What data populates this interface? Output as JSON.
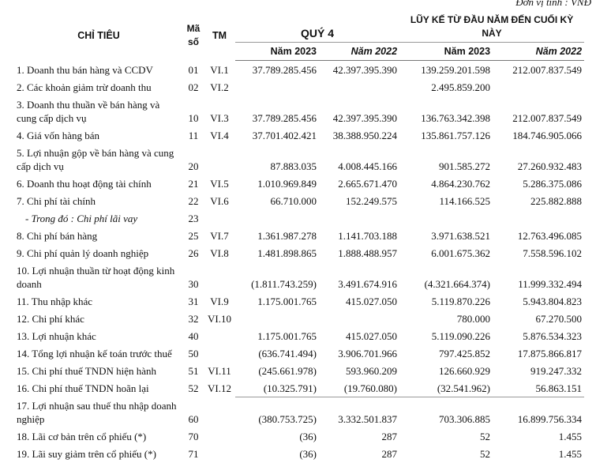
{
  "unit": "Đơn vị tính : VNĐ",
  "table": {
    "header": {
      "indicator": "CHỈ TIÊU",
      "code": "Mã số",
      "note": "TM",
      "quarter": "QUÝ 4",
      "cumulative": "LŨY KẾ TỪ ĐẦU NĂM ĐẾN CUỐI KỲ NÀY",
      "years": [
        "Năm 2023",
        "Năm 2022",
        "Năm 2023",
        "Năm 2022"
      ]
    },
    "rows": [
      [
        "1. Doanh thu bán hàng và CCDV",
        "01",
        "VI.1",
        "37.789.285.456",
        "42.397.395.390",
        "139.259.201.598",
        "212.007.837.549"
      ],
      [
        "2. Các khoản giảm trừ doanh thu",
        "02",
        "VI.2",
        null,
        null,
        "2.495.859.200",
        null
      ],
      [
        "3. Doanh thu thuần về bán hàng và cung cấp dịch vụ",
        "10",
        "VI.3",
        "37.789.285.456",
        "42.397.395.390",
        "136.763.342.398",
        "212.007.837.549"
      ],
      [
        "4. Giá vốn hàng bán",
        "11",
        "VI.4",
        "37.701.402.421",
        "38.388.950.224",
        "135.861.757.126",
        "184.746.905.066"
      ],
      [
        "5. Lợi nhuận gộp về bán hàng và cung cấp dịch vụ",
        "20",
        null,
        "87.883.035",
        "4.008.445.166",
        "901.585.272",
        "27.260.932.483"
      ],
      [
        "6. Doanh thu hoạt động tài chính",
        "21",
        "VI.5",
        "1.010.969.849",
        "2.665.671.470",
        "4.864.230.762",
        "5.286.375.086"
      ],
      [
        "7. Chi phí tài chính",
        "22",
        "VI.6",
        "66.710.000",
        "152.249.575",
        "114.166.525",
        "225.882.888"
      ],
      [
        "- Trong đó : Chi phí lãi vay",
        "23",
        null,
        null,
        null,
        null,
        null
      ],
      [
        "8. Chi phí bán hàng",
        "25",
        "VI.7",
        "1.361.987.278",
        "1.141.703.188",
        "3.971.638.521",
        "12.763.496.085"
      ],
      [
        "9. Chi phí quản lý doanh nghiệp",
        "26",
        "VI.8",
        "1.481.898.865",
        "1.888.488.957",
        "6.001.675.362",
        "7.558.596.102"
      ],
      [
        "10. Lợi nhuận thuần từ hoạt động kinh doanh",
        "30",
        null,
        "(1.811.743.259)",
        "3.491.674.916",
        "(4.321.664.374)",
        "11.999.332.494"
      ],
      [
        "11. Thu nhập khác",
        "31",
        "VI.9",
        "1.175.001.765",
        "415.027.050",
        "5.119.870.226",
        "5.943.804.823"
      ],
      [
        "12. Chi phí khác",
        "32",
        "VI.10",
        null,
        null,
        "780.000",
        "67.270.500"
      ],
      [
        "13. Lợi nhuận khác",
        "40",
        null,
        "1.175.001.765",
        "415.027.050",
        "5.119.090.226",
        "5.876.534.323"
      ],
      [
        "14. Tổng lợi nhuận kế toán trước thuế",
        "50",
        null,
        "(636.741.494)",
        "3.906.701.966",
        "797.425.852",
        "17.875.866.817"
      ],
      [
        "15. Chi phí thuế TNDN hiện hành",
        "51",
        "VI.11",
        "(245.661.978)",
        "593.960.209",
        "126.660.929",
        "919.247.332"
      ],
      [
        "16. Chi phí thuế TNDN hoãn lại",
        "52",
        "VI.12",
        "(10.325.791)",
        "(19.760.080)",
        "(32.541.962)",
        "56.863.151"
      ],
      [
        "17. Lợi nhuận sau thuế thu nhập doanh nghiệp",
        "60",
        null,
        "(380.753.725)",
        "3.332.501.837",
        "703.306.885",
        "16.899.756.334"
      ],
      [
        "18. Lãi cơ bản trên cổ phiếu (*)",
        "70",
        null,
        "(36)",
        "287",
        "52",
        "1.455"
      ],
      [
        "19. Lãi suy giảm trên cổ phiếu (*)",
        "71",
        null,
        "(36)",
        "287",
        "52",
        "1.455"
      ]
    ]
  }
}
